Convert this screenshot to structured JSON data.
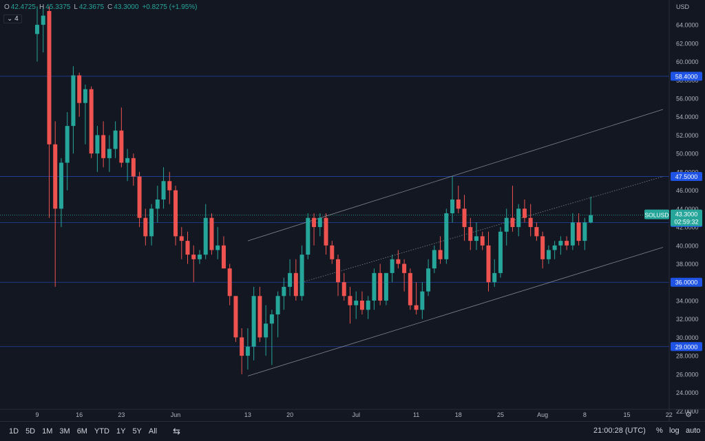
{
  "legend": {
    "o_label": "O",
    "o": "42.4725",
    "h_label": "H",
    "h": "45.3375",
    "l_label": "L",
    "l": "42.3675",
    "c_label": "C",
    "c": "43.3000",
    "change": "+0.8275 (+1.95%)",
    "indicator_toggle": "4"
  },
  "toolbar": {
    "timeframes": [
      "1D",
      "5D",
      "1M",
      "3M",
      "6M",
      "YTD",
      "1Y",
      "5Y",
      "All"
    ],
    "clock": "21:00:28 (UTC)",
    "percent": "%",
    "log": "log",
    "auto": "auto"
  },
  "colors": {
    "background": "#131722",
    "up": "#26a69a",
    "down": "#ef5350",
    "hline": "#2962ff",
    "badge": "#1e53e5"
  },
  "chart_data": {
    "type": "candlestick",
    "symbol": "SOLUSD",
    "currency": "USD",
    "last_price": "43.3000",
    "countdown": "02:59:32",
    "ylim": [
      21.5,
      66.0
    ],
    "y_ticks": [
      22,
      24,
      26,
      28,
      30,
      32,
      34,
      36,
      38,
      40,
      42,
      44,
      46,
      48,
      50,
      52,
      54,
      56,
      58,
      60,
      62,
      64
    ],
    "x_ticks": [
      {
        "label": "9",
        "day": 0
      },
      {
        "label": "16",
        "day": 7
      },
      {
        "label": "23",
        "day": 14
      },
      {
        "label": "Jun",
        "day": 23
      },
      {
        "label": "13",
        "day": 35
      },
      {
        "label": "20",
        "day": 42
      },
      {
        "label": "Jul",
        "day": 53
      },
      {
        "label": "11",
        "day": 63
      },
      {
        "label": "18",
        "day": 70
      },
      {
        "label": "25",
        "day": 77
      },
      {
        "label": "Aug",
        "day": 84
      },
      {
        "label": "8",
        "day": 91
      },
      {
        "label": "15",
        "day": 98
      },
      {
        "label": "22",
        "day": 105
      }
    ],
    "horizontal_lines": [
      {
        "price": 58.4,
        "label": "58.4000"
      },
      {
        "price": 47.5,
        "label": "47.5000"
      },
      {
        "price": 42.5,
        "label": "42.5000"
      },
      {
        "price": 36.0,
        "label": "36.0000"
      },
      {
        "price": 29.0,
        "label": "29.0000"
      }
    ],
    "trendlines": [
      {
        "from": [
          35,
          40.5
        ],
        "to": [
          104,
          54.8
        ]
      },
      {
        "from": [
          35,
          25.8
        ],
        "to": [
          104,
          39.8
        ]
      },
      {
        "from": [
          44,
          36
        ],
        "to": [
          104,
          47.5
        ],
        "dotted": true
      }
    ],
    "candles": [
      {
        "d": 0,
        "o": 63.0,
        "h": 66.0,
        "l": 60.0,
        "c": 64.0
      },
      {
        "d": 1,
        "o": 64.0,
        "h": 66.0,
        "l": 61.0,
        "c": 65.0
      },
      {
        "d": 2,
        "o": 65.5,
        "h": 66.0,
        "l": 43.0,
        "c": 51.0
      },
      {
        "d": 3,
        "o": 51.0,
        "h": 53.5,
        "l": 35.5,
        "c": 44.0
      },
      {
        "d": 4,
        "o": 44.0,
        "h": 49.5,
        "l": 42.0,
        "c": 49.0
      },
      {
        "d": 5,
        "o": 49.0,
        "h": 54.5,
        "l": 46.0,
        "c": 53.0
      },
      {
        "d": 6,
        "o": 53.0,
        "h": 59.5,
        "l": 50.0,
        "c": 58.5
      },
      {
        "d": 7,
        "o": 58.5,
        "h": 58.8,
        "l": 54.0,
        "c": 55.5
      },
      {
        "d": 8,
        "o": 55.5,
        "h": 57.5,
        "l": 51.0,
        "c": 57.0
      },
      {
        "d": 9,
        "o": 57.0,
        "h": 57.3,
        "l": 49.5,
        "c": 50.0
      },
      {
        "d": 10,
        "o": 50.0,
        "h": 53.0,
        "l": 48.0,
        "c": 52.0
      },
      {
        "d": 11,
        "o": 52.0,
        "h": 53.5,
        "l": 48.5,
        "c": 49.5
      },
      {
        "d": 12,
        "o": 49.5,
        "h": 52.0,
        "l": 48.0,
        "c": 50.5
      },
      {
        "d": 13,
        "o": 50.5,
        "h": 53.5,
        "l": 49.5,
        "c": 52.5
      },
      {
        "d": 14,
        "o": 52.5,
        "h": 55.0,
        "l": 48.5,
        "c": 49.0
      },
      {
        "d": 15,
        "o": 49.0,
        "h": 50.5,
        "l": 47.0,
        "c": 49.5
      },
      {
        "d": 16,
        "o": 49.5,
        "h": 50.0,
        "l": 46.5,
        "c": 47.5
      },
      {
        "d": 17,
        "o": 47.5,
        "h": 48.0,
        "l": 42.0,
        "c": 43.0
      },
      {
        "d": 18,
        "o": 43.0,
        "h": 44.0,
        "l": 40.0,
        "c": 41.0
      },
      {
        "d": 19,
        "o": 41.0,
        "h": 44.5,
        "l": 40.0,
        "c": 44.0
      },
      {
        "d": 20,
        "o": 44.0,
        "h": 46.5,
        "l": 42.5,
        "c": 45.0
      },
      {
        "d": 21,
        "o": 45.0,
        "h": 48.5,
        "l": 44.0,
        "c": 47.0
      },
      {
        "d": 22,
        "o": 47.0,
        "h": 48.0,
        "l": 44.5,
        "c": 46.0
      },
      {
        "d": 23,
        "o": 46.0,
        "h": 46.5,
        "l": 40.0,
        "c": 41.0
      },
      {
        "d": 24,
        "o": 41.0,
        "h": 42.0,
        "l": 38.5,
        "c": 40.5
      },
      {
        "d": 25,
        "o": 40.5,
        "h": 41.5,
        "l": 38.0,
        "c": 39.0
      },
      {
        "d": 26,
        "o": 39.0,
        "h": 40.0,
        "l": 36.0,
        "c": 38.5
      },
      {
        "d": 27,
        "o": 38.5,
        "h": 39.5,
        "l": 38.0,
        "c": 39.0
      },
      {
        "d": 28,
        "o": 39.0,
        "h": 44.5,
        "l": 38.5,
        "c": 43.0
      },
      {
        "d": 29,
        "o": 43.0,
        "h": 43.5,
        "l": 39.0,
        "c": 39.5
      },
      {
        "d": 30,
        "o": 39.5,
        "h": 42.0,
        "l": 38.5,
        "c": 40.0
      },
      {
        "d": 31,
        "o": 40.0,
        "h": 41.0,
        "l": 37.5,
        "c": 37.5
      },
      {
        "d": 32,
        "o": 37.5,
        "h": 38.0,
        "l": 33.5,
        "c": 34.5
      },
      {
        "d": 33,
        "o": 34.5,
        "h": 34.5,
        "l": 29.5,
        "c": 30.0
      },
      {
        "d": 34,
        "o": 30.0,
        "h": 31.0,
        "l": 26.0,
        "c": 28.0
      },
      {
        "d": 35,
        "o": 28.0,
        "h": 31.0,
        "l": 26.5,
        "c": 29.0
      },
      {
        "d": 36,
        "o": 29.0,
        "h": 35.5,
        "l": 27.5,
        "c": 34.5
      },
      {
        "d": 37,
        "o": 34.5,
        "h": 35.5,
        "l": 29.5,
        "c": 30.0
      },
      {
        "d": 38,
        "o": 30.0,
        "h": 33.5,
        "l": 28.0,
        "c": 31.5
      },
      {
        "d": 39,
        "o": 31.5,
        "h": 33.0,
        "l": 27.0,
        "c": 32.5
      },
      {
        "d": 40,
        "o": 32.5,
        "h": 35.0,
        "l": 30.0,
        "c": 34.5
      },
      {
        "d": 41,
        "o": 34.5,
        "h": 36.5,
        "l": 33.0,
        "c": 35.5
      },
      {
        "d": 42,
        "o": 35.5,
        "h": 38.5,
        "l": 34.5,
        "c": 37.0
      },
      {
        "d": 43,
        "o": 37.0,
        "h": 38.5,
        "l": 34.0,
        "c": 34.5
      },
      {
        "d": 44,
        "o": 34.5,
        "h": 40.0,
        "l": 34.0,
        "c": 39.0
      },
      {
        "d": 45,
        "o": 39.0,
        "h": 43.5,
        "l": 38.5,
        "c": 43.0
      },
      {
        "d": 46,
        "o": 43.0,
        "h": 43.5,
        "l": 40.0,
        "c": 42.0
      },
      {
        "d": 47,
        "o": 42.0,
        "h": 43.5,
        "l": 41.0,
        "c": 43.0
      },
      {
        "d": 48,
        "o": 43.0,
        "h": 43.5,
        "l": 39.0,
        "c": 40.0
      },
      {
        "d": 49,
        "o": 40.0,
        "h": 40.5,
        "l": 38.0,
        "c": 38.5
      },
      {
        "d": 50,
        "o": 38.5,
        "h": 39.0,
        "l": 34.5,
        "c": 36.0
      },
      {
        "d": 51,
        "o": 36.0,
        "h": 37.0,
        "l": 34.0,
        "c": 34.5
      },
      {
        "d": 52,
        "o": 34.5,
        "h": 35.5,
        "l": 31.5,
        "c": 33.5
      },
      {
        "d": 53,
        "o": 33.5,
        "h": 35.0,
        "l": 32.0,
        "c": 34.0
      },
      {
        "d": 54,
        "o": 34.0,
        "h": 35.0,
        "l": 32.5,
        "c": 33.0
      },
      {
        "d": 55,
        "o": 33.0,
        "h": 34.5,
        "l": 32.0,
        "c": 34.0
      },
      {
        "d": 56,
        "o": 34.0,
        "h": 37.5,
        "l": 33.0,
        "c": 37.0
      },
      {
        "d": 57,
        "o": 37.0,
        "h": 38.0,
        "l": 33.5,
        "c": 34.0
      },
      {
        "d": 58,
        "o": 34.0,
        "h": 37.0,
        "l": 33.5,
        "c": 37.0
      },
      {
        "d": 59,
        "o": 37.0,
        "h": 39.0,
        "l": 36.0,
        "c": 38.5
      },
      {
        "d": 60,
        "o": 38.5,
        "h": 39.5,
        "l": 37.5,
        "c": 38.0
      },
      {
        "d": 61,
        "o": 38.0,
        "h": 38.5,
        "l": 35.0,
        "c": 37.0
      },
      {
        "d": 62,
        "o": 37.0,
        "h": 37.5,
        "l": 33.0,
        "c": 33.5
      },
      {
        "d": 63,
        "o": 33.5,
        "h": 36.0,
        "l": 32.5,
        "c": 33.0
      },
      {
        "d": 64,
        "o": 33.0,
        "h": 36.0,
        "l": 32.0,
        "c": 35.0
      },
      {
        "d": 65,
        "o": 35.0,
        "h": 38.5,
        "l": 34.5,
        "c": 37.5
      },
      {
        "d": 66,
        "o": 37.5,
        "h": 40.0,
        "l": 37.0,
        "c": 39.5
      },
      {
        "d": 67,
        "o": 39.5,
        "h": 41.0,
        "l": 38.0,
        "c": 38.5
      },
      {
        "d": 68,
        "o": 38.5,
        "h": 44.0,
        "l": 38.0,
        "c": 43.5
      },
      {
        "d": 69,
        "o": 43.5,
        "h": 47.5,
        "l": 42.5,
        "c": 45.0
      },
      {
        "d": 70,
        "o": 45.0,
        "h": 46.5,
        "l": 43.5,
        "c": 44.0
      },
      {
        "d": 71,
        "o": 44.0,
        "h": 45.5,
        "l": 40.5,
        "c": 42.0
      },
      {
        "d": 72,
        "o": 42.0,
        "h": 43.0,
        "l": 39.5,
        "c": 40.5
      },
      {
        "d": 73,
        "o": 40.5,
        "h": 42.5,
        "l": 39.5,
        "c": 41.0
      },
      {
        "d": 74,
        "o": 41.0,
        "h": 41.5,
        "l": 39.5,
        "c": 40.0
      },
      {
        "d": 75,
        "o": 40.0,
        "h": 41.5,
        "l": 35.0,
        "c": 36.0
      },
      {
        "d": 76,
        "o": 36.0,
        "h": 38.5,
        "l": 35.5,
        "c": 37.0
      },
      {
        "d": 77,
        "o": 37.0,
        "h": 42.0,
        "l": 36.5,
        "c": 41.5
      },
      {
        "d": 78,
        "o": 41.5,
        "h": 44.0,
        "l": 40.0,
        "c": 43.0
      },
      {
        "d": 79,
        "o": 43.0,
        "h": 46.5,
        "l": 41.5,
        "c": 42.0
      },
      {
        "d": 80,
        "o": 42.0,
        "h": 44.5,
        "l": 41.0,
        "c": 44.0
      },
      {
        "d": 81,
        "o": 44.0,
        "h": 45.0,
        "l": 42.5,
        "c": 43.0
      },
      {
        "d": 82,
        "o": 43.0,
        "h": 44.5,
        "l": 41.0,
        "c": 42.0
      },
      {
        "d": 83,
        "o": 42.0,
        "h": 42.5,
        "l": 40.5,
        "c": 41.0
      },
      {
        "d": 84,
        "o": 41.0,
        "h": 41.5,
        "l": 37.5,
        "c": 38.5
      },
      {
        "d": 85,
        "o": 38.5,
        "h": 40.0,
        "l": 38.0,
        "c": 39.5
      },
      {
        "d": 86,
        "o": 39.5,
        "h": 40.5,
        "l": 38.5,
        "c": 40.0
      },
      {
        "d": 87,
        "o": 40.0,
        "h": 41.0,
        "l": 39.0,
        "c": 40.5
      },
      {
        "d": 88,
        "o": 40.5,
        "h": 41.0,
        "l": 39.5,
        "c": 40.0
      },
      {
        "d": 89,
        "o": 40.0,
        "h": 43.5,
        "l": 39.5,
        "c": 42.5
      },
      {
        "d": 90,
        "o": 42.5,
        "h": 43.5,
        "l": 40.0,
        "c": 40.5
      },
      {
        "d": 91,
        "o": 40.5,
        "h": 43.0,
        "l": 39.5,
        "c": 42.5
      },
      {
        "d": 92,
        "o": 42.5,
        "h": 45.3,
        "l": 42.4,
        "c": 43.3
      }
    ]
  }
}
